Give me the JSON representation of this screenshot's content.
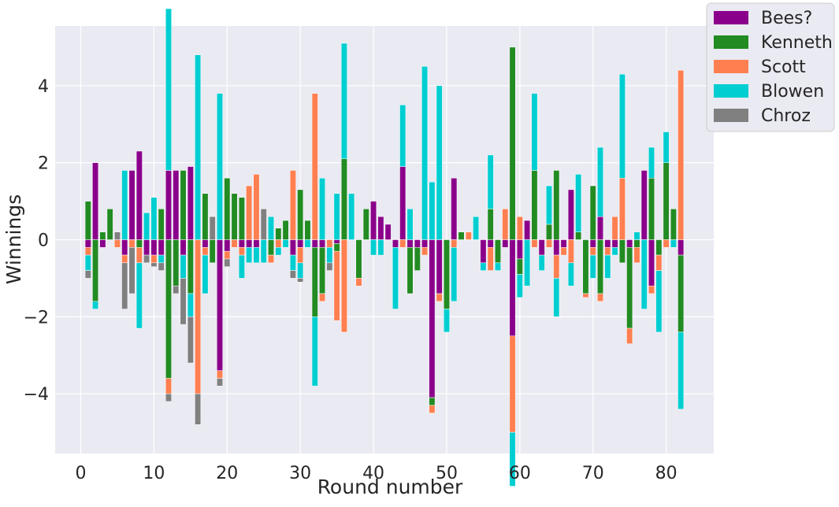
{
  "chart_data": {
    "type": "bar",
    "stacked": true,
    "title": "",
    "xlabel": "Round number",
    "ylabel": "Winnings",
    "xlim": [
      -3.5,
      86.5
    ],
    "ylim": [
      -5.55,
      5.55
    ],
    "xticks": [
      0,
      10,
      20,
      30,
      40,
      50,
      60,
      70,
      80
    ],
    "yticks": [
      -4,
      -2,
      0,
      2,
      4
    ],
    "ytick_labels": [
      "−4",
      "−2",
      "0",
      "2",
      "4"
    ],
    "grid": true,
    "legend_position": "upper-right-outside",
    "x": [
      1,
      2,
      3,
      4,
      5,
      6,
      7,
      8,
      9,
      10,
      11,
      12,
      13,
      14,
      15,
      16,
      17,
      18,
      19,
      20,
      21,
      22,
      23,
      24,
      25,
      26,
      27,
      28,
      29,
      30,
      31,
      32,
      33,
      34,
      35,
      36,
      37,
      38,
      39,
      40,
      41,
      42,
      43,
      44,
      45,
      46,
      47,
      48,
      49,
      50,
      51,
      52,
      53,
      54,
      55,
      56,
      57,
      58,
      59,
      60,
      61,
      62,
      63,
      64,
      65,
      66,
      67,
      68,
      69,
      70,
      71,
      72,
      73,
      74,
      75,
      76,
      77,
      78,
      79,
      80,
      81,
      82
    ],
    "series": [
      {
        "name": "Bees?",
        "color": "#8b008b",
        "values": [
          -0.2,
          2.0,
          -0.2,
          0,
          0,
          -0.4,
          1.8,
          2.3,
          -0.4,
          -0.4,
          -0.4,
          1.8,
          1.8,
          -0.4,
          1.9,
          0,
          -0.2,
          0,
          -3.4,
          -0.3,
          0,
          -0.2,
          -0.2,
          -0.2,
          0,
          0,
          0,
          0,
          -0.4,
          -0.2,
          0,
          -0.2,
          -0.2,
          0,
          -0.1,
          0,
          0,
          0,
          0,
          1.0,
          0.6,
          0.4,
          -0.2,
          1.9,
          -0.2,
          -0.2,
          -0.2,
          -4.1,
          -1.4,
          0,
          1.6,
          0,
          0,
          0,
          -0.6,
          -0.2,
          0,
          -0.2,
          -2.5,
          -0.5,
          0.5,
          0,
          -0.4,
          0,
          -0.4,
          -0.2,
          1.3,
          0,
          0,
          -0.2,
          0.6,
          -0.2,
          -0.2,
          0,
          -0.2,
          0,
          1.8,
          -1.2,
          0,
          0,
          0,
          -0.4
        ]
      },
      {
        "name": "Kenneth",
        "color": "#228b22",
        "values": [
          1.0,
          -1.6,
          0.2,
          0.8,
          0,
          0,
          0,
          -0.2,
          0,
          0,
          0.8,
          -3.6,
          -1.2,
          1.8,
          -1.4,
          0,
          1.2,
          -0.6,
          0,
          1.6,
          1.2,
          1.1,
          0,
          0,
          0,
          -0.4,
          0.3,
          0.5,
          0,
          1.3,
          0.5,
          -1.8,
          -1.2,
          0,
          -0.2,
          2.1,
          0,
          -1.0,
          0.8,
          0,
          0,
          0,
          0,
          0,
          -1.2,
          -0.6,
          0,
          -0.2,
          0,
          -1.8,
          0,
          0.2,
          0,
          0,
          0,
          0.8,
          -0.6,
          0,
          5.0,
          -0.4,
          0,
          1.8,
          0,
          0.4,
          1.8,
          0,
          0,
          0.2,
          -1.4,
          1.4,
          -1.4,
          0,
          0,
          -0.6,
          -2.1,
          -0.2,
          0,
          1.6,
          -0.4,
          2.0,
          0.8,
          -2.0
        ]
      },
      {
        "name": "Scott",
        "color": "#ff7f50",
        "values": [
          -0.2,
          0,
          0,
          0,
          -0.2,
          -0.2,
          -0.2,
          -0.4,
          0,
          -0.2,
          0,
          -0.4,
          0,
          0,
          0,
          -4.0,
          -0.2,
          0,
          -0.2,
          -0.2,
          -0.2,
          -0.2,
          1.4,
          1.7,
          0,
          -0.2,
          -0.2,
          0,
          1.8,
          -0.4,
          0,
          3.8,
          -0.2,
          -0.2,
          -1.8,
          -2.4,
          0,
          -0.2,
          0,
          0,
          0,
          0,
          0,
          -0.2,
          0,
          0,
          -0.2,
          -0.2,
          -0.2,
          0,
          -0.2,
          0,
          0.2,
          0,
          0,
          -0.6,
          0,
          0.8,
          -2.5,
          0.6,
          0,
          -0.2,
          0,
          -0.2,
          -0.6,
          -0.2,
          -0.6,
          0,
          -0.1,
          -0.2,
          -0.2,
          -0.2,
          0.6,
          1.6,
          -0.4,
          -0.4,
          0,
          -0.2,
          -0.4,
          -0.2,
          0,
          4.4
        ]
      },
      {
        "name": "Blowen",
        "color": "#00ced1",
        "values": [
          -0.4,
          -0.2,
          0,
          0,
          0,
          1.8,
          0,
          -1.7,
          0.7,
          1.1,
          -0.2,
          4.2,
          0,
          -0.6,
          -0.6,
          4.8,
          -1.0,
          0,
          3.8,
          0,
          0,
          -0.6,
          -0.4,
          -0.4,
          -0.6,
          0.6,
          -0.2,
          -0.2,
          -0.4,
          -0.4,
          -0.2,
          -1.8,
          1.6,
          -0.4,
          1.2,
          3.0,
          1.2,
          0,
          0,
          -0.4,
          -0.4,
          0,
          -1.6,
          1.6,
          0.8,
          0,
          4.5,
          1.5,
          4.0,
          -0.6,
          -1.4,
          0,
          0,
          0.6,
          -0.2,
          1.4,
          -0.2,
          0,
          -1.4,
          -0.6,
          -1.2,
          2.0,
          -0.4,
          1.0,
          -1.0,
          0,
          -0.6,
          1.5,
          0,
          -0.6,
          1.8,
          -0.6,
          -0.2,
          2.7,
          0,
          0.2,
          -1.8,
          0.8,
          -1.6,
          0.8,
          -0.2,
          -2.0
        ]
      },
      {
        "name": "Chroz",
        "color": "#808080",
        "values": [
          -0.2,
          0,
          0,
          0,
          0.2,
          -1.2,
          -1.2,
          0,
          -0.2,
          -0.1,
          -0.2,
          -0.2,
          -0.2,
          -1.2,
          -1.2,
          -0.8,
          0,
          0.6,
          -0.2,
          -0.2,
          0,
          0,
          0,
          0,
          0.8,
          0,
          0,
          0,
          -0.2,
          -0.1,
          0,
          0,
          0,
          -0.2,
          0,
          0,
          0,
          0,
          0,
          0,
          0,
          0,
          0,
          0,
          0,
          0,
          0,
          0,
          0,
          0,
          0,
          0,
          0,
          0,
          0,
          0,
          0,
          0,
          0,
          0,
          0,
          0,
          0,
          0,
          0,
          0,
          0,
          0,
          0,
          0,
          0,
          0,
          0,
          0,
          0,
          0,
          0,
          0,
          0,
          0,
          0,
          0
        ]
      }
    ]
  }
}
